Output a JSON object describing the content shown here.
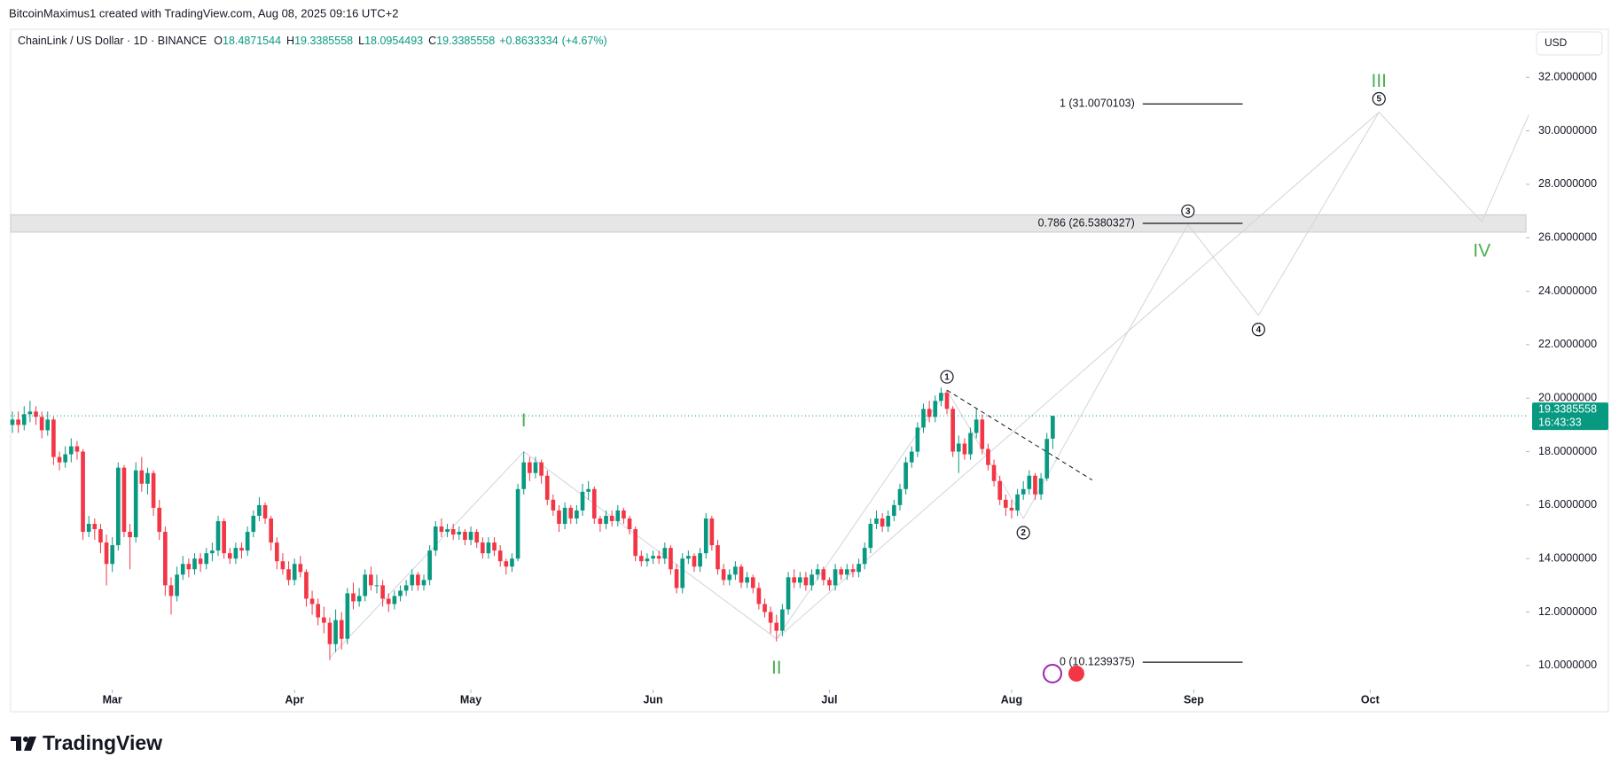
{
  "header": {
    "credit": "BitcoinMaximus1 created with TradingView.com, Aug 08, 2025 09:16 UTC+2"
  },
  "chart_data": {
    "type": "candlestick",
    "symbol": "ChainLink / US Dollar · 1D · BINANCE",
    "ohlc_legend": [
      {
        "label": "O",
        "value": 18.4871544
      },
      {
        "label": "H",
        "value": 19.3385558
      },
      {
        "label": "L",
        "value": 18.0954493
      },
      {
        "label": "C",
        "value": 19.3385558
      }
    ],
    "change": {
      "value": 0.8633334,
      "label": "+0.8633334"
    },
    "change_pct": {
      "value": 4.67,
      "label": "(+4.67%)"
    },
    "currency": "USD",
    "last_price": 19.3385558,
    "countdown": "16:43:33",
    "up_color": "#089981",
    "down_color": "#f23645",
    "xlim": [
      -0.3,
      257.5
    ],
    "xticks": [
      {
        "value": 17,
        "label": "Mar"
      },
      {
        "value": 48,
        "label": "Apr"
      },
      {
        "value": 78,
        "label": "May"
      },
      {
        "value": 109,
        "label": "Jun"
      },
      {
        "value": 139,
        "label": "Jul"
      },
      {
        "value": 170,
        "label": "Aug"
      },
      {
        "value": 201,
        "label": "Sep"
      },
      {
        "value": 231,
        "label": "Oct"
      }
    ],
    "ylim": [
      9.1,
      33.8
    ],
    "yticks": [
      {
        "value": 10,
        "label": "10.0000000"
      },
      {
        "value": 12,
        "label": "12.0000000"
      },
      {
        "value": 14,
        "label": "14.0000000"
      },
      {
        "value": 16,
        "label": "16.0000000"
      },
      {
        "value": 18,
        "label": "18.0000000"
      },
      {
        "value": 20,
        "label": "20.0000000"
      },
      {
        "value": 22,
        "label": "22.0000000"
      },
      {
        "value": 24,
        "label": "24.0000000"
      },
      {
        "value": 26,
        "label": "26.0000000"
      },
      {
        "value": 28,
        "label": "28.0000000"
      },
      {
        "value": 30,
        "label": "30.0000000"
      },
      {
        "value": 32,
        "label": "32.0000000"
      }
    ],
    "ohlc": [
      [
        19.0,
        19.5,
        18.7,
        19.2
      ],
      [
        19.2,
        19.5,
        18.7,
        19.0
      ],
      [
        19.0,
        19.7,
        18.8,
        19.4
      ],
      [
        19.4,
        19.9,
        19.1,
        19.5
      ],
      [
        19.5,
        19.7,
        19.0,
        19.3
      ],
      [
        19.3,
        19.5,
        18.5,
        18.8
      ],
      [
        18.8,
        19.5,
        18.6,
        19.2
      ],
      [
        19.2,
        19.3,
        17.5,
        17.8
      ],
      [
        17.8,
        18.0,
        17.3,
        17.6
      ],
      [
        17.6,
        18.2,
        17.4,
        17.9
      ],
      [
        17.9,
        18.5,
        17.6,
        18.2
      ],
      [
        18.2,
        18.4,
        17.7,
        18.0
      ],
      [
        18.0,
        18.1,
        14.7,
        15.0
      ],
      [
        15.0,
        15.6,
        14.8,
        15.3
      ],
      [
        15.3,
        15.5,
        14.7,
        15.1
      ],
      [
        15.1,
        15.3,
        14.2,
        14.6
      ],
      [
        14.6,
        14.9,
        13.0,
        13.8
      ],
      [
        13.8,
        14.8,
        13.5,
        14.5
      ],
      [
        14.5,
        17.6,
        14.3,
        17.4
      ],
      [
        17.4,
        17.5,
        14.8,
        15.0
      ],
      [
        15.0,
        15.3,
        13.6,
        14.8
      ],
      [
        14.8,
        17.6,
        14.6,
        17.3
      ],
      [
        17.3,
        17.8,
        16.5,
        16.8
      ],
      [
        16.8,
        17.4,
        16.4,
        17.2
      ],
      [
        17.2,
        17.3,
        15.6,
        15.9
      ],
      [
        15.9,
        16.2,
        14.7,
        15.0
      ],
      [
        15.0,
        15.2,
        12.6,
        13.0
      ],
      [
        13.0,
        13.3,
        11.9,
        12.6
      ],
      [
        12.6,
        13.7,
        12.4,
        13.4
      ],
      [
        13.4,
        14.1,
        13.2,
        13.8
      ],
      [
        13.8,
        14.0,
        13.3,
        13.6
      ],
      [
        13.6,
        14.2,
        13.4,
        14.0
      ],
      [
        14.0,
        14.2,
        13.5,
        13.8
      ],
      [
        13.8,
        14.4,
        13.6,
        14.2
      ],
      [
        14.2,
        14.6,
        13.9,
        14.3
      ],
      [
        14.3,
        15.6,
        14.1,
        15.4
      ],
      [
        15.4,
        15.5,
        14.0,
        14.2
      ],
      [
        14.2,
        14.4,
        13.8,
        14.0
      ],
      [
        14.0,
        14.6,
        13.8,
        14.4
      ],
      [
        14.4,
        14.6,
        14.0,
        14.3
      ],
      [
        14.3,
        15.2,
        14.1,
        15.0
      ],
      [
        15.0,
        15.8,
        14.8,
        15.6
      ],
      [
        15.6,
        16.3,
        15.4,
        16.0
      ],
      [
        16.0,
        16.1,
        15.3,
        15.5
      ],
      [
        15.5,
        15.6,
        14.3,
        14.6
      ],
      [
        14.6,
        14.8,
        13.6,
        13.9
      ],
      [
        13.9,
        14.2,
        13.4,
        13.6
      ],
      [
        13.6,
        13.9,
        13.0,
        13.2
      ],
      [
        13.2,
        14.0,
        13.0,
        13.8
      ],
      [
        13.8,
        14.1,
        13.3,
        13.5
      ],
      [
        13.5,
        13.6,
        12.2,
        12.5
      ],
      [
        12.5,
        12.8,
        11.9,
        12.3
      ],
      [
        12.3,
        12.5,
        11.5,
        11.8
      ],
      [
        11.8,
        12.2,
        11.2,
        11.6
      ],
      [
        11.6,
        11.8,
        10.2,
        10.8
      ],
      [
        10.8,
        12.1,
        10.5,
        11.7
      ],
      [
        11.7,
        12.0,
        10.6,
        11.0
      ],
      [
        11.0,
        12.9,
        10.8,
        12.7
      ],
      [
        12.7,
        13.1,
        12.1,
        12.4
      ],
      [
        12.4,
        12.9,
        12.2,
        12.6
      ],
      [
        12.6,
        13.6,
        12.4,
        13.4
      ],
      [
        13.4,
        13.7,
        12.8,
        13.0
      ],
      [
        13.0,
        13.4,
        12.7,
        13.0
      ],
      [
        13.0,
        13.2,
        12.2,
        12.5
      ],
      [
        12.5,
        12.7,
        12.0,
        12.3
      ],
      [
        12.3,
        12.8,
        12.1,
        12.6
      ],
      [
        12.6,
        13.0,
        12.4,
        12.8
      ],
      [
        12.8,
        13.2,
        12.6,
        13.0
      ],
      [
        13.0,
        13.6,
        12.8,
        13.4
      ],
      [
        13.4,
        13.5,
        12.8,
        13.0
      ],
      [
        13.0,
        13.4,
        12.8,
        13.2
      ],
      [
        13.2,
        14.5,
        13.0,
        14.3
      ],
      [
        14.3,
        15.4,
        14.1,
        15.2
      ],
      [
        15.2,
        15.5,
        14.8,
        15.0
      ],
      [
        15.0,
        15.3,
        14.8,
        15.1
      ],
      [
        15.1,
        15.3,
        14.7,
        14.9
      ],
      [
        14.9,
        15.2,
        14.7,
        15.0
      ],
      [
        15.0,
        15.1,
        14.5,
        14.7
      ],
      [
        14.7,
        15.2,
        14.5,
        15.0
      ],
      [
        15.0,
        15.1,
        14.4,
        14.6
      ],
      [
        14.6,
        14.8,
        14.0,
        14.2
      ],
      [
        14.2,
        14.8,
        14.0,
        14.6
      ],
      [
        14.6,
        14.8,
        14.1,
        14.3
      ],
      [
        14.3,
        14.5,
        13.7,
        13.9
      ],
      [
        13.9,
        14.0,
        13.4,
        13.7
      ],
      [
        13.7,
        14.2,
        13.5,
        14.0
      ],
      [
        14.0,
        16.8,
        13.9,
        16.6
      ],
      [
        16.6,
        18.0,
        16.4,
        17.6
      ],
      [
        17.6,
        17.8,
        16.9,
        17.2
      ],
      [
        17.2,
        17.8,
        17.0,
        17.6
      ],
      [
        17.6,
        17.7,
        16.8,
        17.1
      ],
      [
        17.1,
        17.3,
        16.0,
        16.2
      ],
      [
        16.2,
        16.4,
        15.6,
        15.8
      ],
      [
        15.8,
        16.0,
        15.0,
        15.3
      ],
      [
        15.3,
        16.1,
        15.1,
        15.9
      ],
      [
        15.9,
        16.0,
        15.3,
        15.5
      ],
      [
        15.5,
        16.0,
        15.3,
        15.8
      ],
      [
        15.8,
        16.8,
        15.6,
        16.5
      ],
      [
        16.5,
        16.9,
        16.2,
        16.6
      ],
      [
        16.6,
        16.7,
        15.3,
        15.5
      ],
      [
        15.5,
        15.6,
        15.0,
        15.3
      ],
      [
        15.3,
        15.8,
        15.1,
        15.6
      ],
      [
        15.6,
        15.8,
        15.2,
        15.4
      ],
      [
        15.4,
        16.0,
        15.2,
        15.8
      ],
      [
        15.8,
        15.9,
        15.3,
        15.5
      ],
      [
        15.5,
        15.6,
        14.9,
        15.1
      ],
      [
        15.1,
        15.2,
        13.9,
        14.1
      ],
      [
        14.1,
        14.3,
        13.7,
        13.9
      ],
      [
        13.9,
        14.2,
        13.7,
        14.0
      ],
      [
        14.0,
        14.3,
        13.8,
        14.1
      ],
      [
        14.1,
        14.3,
        13.8,
        14.0
      ],
      [
        14.0,
        14.6,
        13.8,
        14.4
      ],
      [
        14.4,
        14.5,
        13.4,
        13.6
      ],
      [
        13.6,
        13.8,
        12.7,
        12.9
      ],
      [
        12.9,
        14.2,
        12.7,
        14.0
      ],
      [
        14.0,
        14.3,
        13.8,
        14.1
      ],
      [
        14.1,
        14.2,
        13.5,
        13.7
      ],
      [
        13.7,
        14.4,
        13.5,
        14.2
      ],
      [
        14.2,
        15.7,
        14.0,
        15.5
      ],
      [
        15.5,
        15.6,
        14.3,
        14.5
      ],
      [
        14.5,
        14.7,
        13.4,
        13.6
      ],
      [
        13.6,
        13.8,
        13.0,
        13.2
      ],
      [
        13.2,
        13.6,
        13.0,
        13.4
      ],
      [
        13.4,
        13.9,
        13.2,
        13.7
      ],
      [
        13.7,
        13.8,
        12.9,
        13.1
      ],
      [
        13.1,
        13.5,
        12.9,
        13.3
      ],
      [
        13.3,
        13.4,
        12.7,
        12.9
      ],
      [
        12.9,
        13.1,
        12.1,
        12.3
      ],
      [
        12.3,
        12.5,
        11.8,
        12.0
      ],
      [
        12.0,
        12.2,
        11.2,
        11.6
      ],
      [
        11.6,
        11.9,
        10.9,
        11.3
      ],
      [
        11.3,
        12.3,
        11.1,
        12.1
      ],
      [
        12.1,
        13.5,
        11.9,
        13.3
      ],
      [
        13.3,
        13.6,
        12.9,
        13.1
      ],
      [
        13.1,
        13.5,
        12.9,
        13.3
      ],
      [
        13.3,
        13.5,
        12.8,
        13.0
      ],
      [
        13.0,
        13.6,
        12.8,
        13.4
      ],
      [
        13.4,
        13.8,
        13.2,
        13.6
      ],
      [
        13.6,
        13.7,
        13.0,
        13.2
      ],
      [
        13.2,
        13.3,
        12.8,
        13.0
      ],
      [
        13.0,
        13.8,
        12.8,
        13.6
      ],
      [
        13.6,
        13.7,
        13.2,
        13.4
      ],
      [
        13.4,
        13.8,
        13.2,
        13.6
      ],
      [
        13.6,
        13.8,
        13.3,
        13.5
      ],
      [
        13.5,
        14.0,
        13.3,
        13.8
      ],
      [
        13.8,
        14.6,
        13.6,
        14.4
      ],
      [
        14.4,
        15.5,
        14.2,
        15.3
      ],
      [
        15.3,
        15.8,
        15.1,
        15.5
      ],
      [
        15.5,
        15.7,
        15.0,
        15.2
      ],
      [
        15.2,
        15.8,
        15.0,
        15.6
      ],
      [
        15.6,
        16.2,
        15.4,
        16.0
      ],
      [
        16.0,
        16.8,
        15.8,
        16.6
      ],
      [
        16.6,
        17.8,
        16.4,
        17.6
      ],
      [
        17.6,
        18.2,
        17.4,
        18.0
      ],
      [
        18.0,
        19.1,
        17.8,
        18.9
      ],
      [
        18.9,
        19.8,
        18.7,
        19.6
      ],
      [
        19.6,
        19.9,
        19.1,
        19.3
      ],
      [
        19.3,
        20.1,
        19.1,
        19.9
      ],
      [
        19.9,
        20.4,
        19.7,
        20.2
      ],
      [
        20.2,
        20.3,
        19.4,
        19.6
      ],
      [
        19.6,
        19.7,
        17.8,
        18.0
      ],
      [
        18.0,
        18.6,
        17.2,
        18.3
      ],
      [
        18.3,
        18.5,
        17.7,
        17.9
      ],
      [
        17.9,
        18.9,
        17.7,
        18.7
      ],
      [
        18.7,
        19.6,
        18.5,
        19.2
      ],
      [
        19.2,
        19.4,
        17.9,
        18.1
      ],
      [
        18.1,
        18.3,
        17.3,
        17.5
      ],
      [
        17.5,
        17.7,
        16.7,
        16.9
      ],
      [
        16.9,
        17.1,
        16.0,
        16.2
      ],
      [
        16.2,
        16.4,
        15.6,
        15.9
      ],
      [
        15.9,
        16.2,
        15.5,
        15.8
      ],
      [
        15.8,
        16.6,
        15.6,
        16.4
      ],
      [
        16.4,
        16.9,
        16.2,
        16.6
      ],
      [
        16.6,
        17.3,
        16.4,
        17.1
      ],
      [
        17.1,
        17.2,
        16.2,
        16.4
      ],
      [
        16.4,
        17.2,
        16.2,
        17.0
      ],
      [
        17.0,
        18.7,
        16.9,
        18.4752224
      ],
      [
        18.4871544,
        19.3385558,
        18.0954493,
        19.3385558
      ]
    ],
    "zone": [
      26.21,
      26.86
    ],
    "fib_x": [
      192.3,
      209.3
    ],
    "fib_levels": [
      {
        "label": "1 (31.0070103)",
        "value": 31.0070103
      },
      {
        "label": "0.786 (26.5380327)",
        "value": 26.5380327
      },
      {
        "label": "0 (10.1239375)",
        "value": 10.1239375
      }
    ],
    "trendline": {
      "x": [
        159,
        183.7
      ],
      "y": [
        20.3,
        16.94
      ]
    },
    "waves": [
      {
        "degree": "primary",
        "color": "#4caf50",
        "x": [
          54,
          87,
          130,
          232.5,
          250,
          258
        ],
        "y": [
          10.3,
          18,
          11,
          30.7,
          26.6,
          30.6
        ],
        "labels": [
          null,
          "I",
          "II",
          "III",
          "IV",
          null
        ]
      },
      {
        "degree": "minor",
        "color": "#131722",
        "x": [
          130,
          159,
          172,
          200,
          212,
          232.5
        ],
        "y": [
          11,
          20.3,
          15.5,
          26.5,
          23.1,
          30.7
        ],
        "labels": [
          null,
          "1",
          "2",
          "3",
          "4",
          "5"
        ]
      }
    ]
  },
  "footer": {
    "logo": "TradingView"
  }
}
